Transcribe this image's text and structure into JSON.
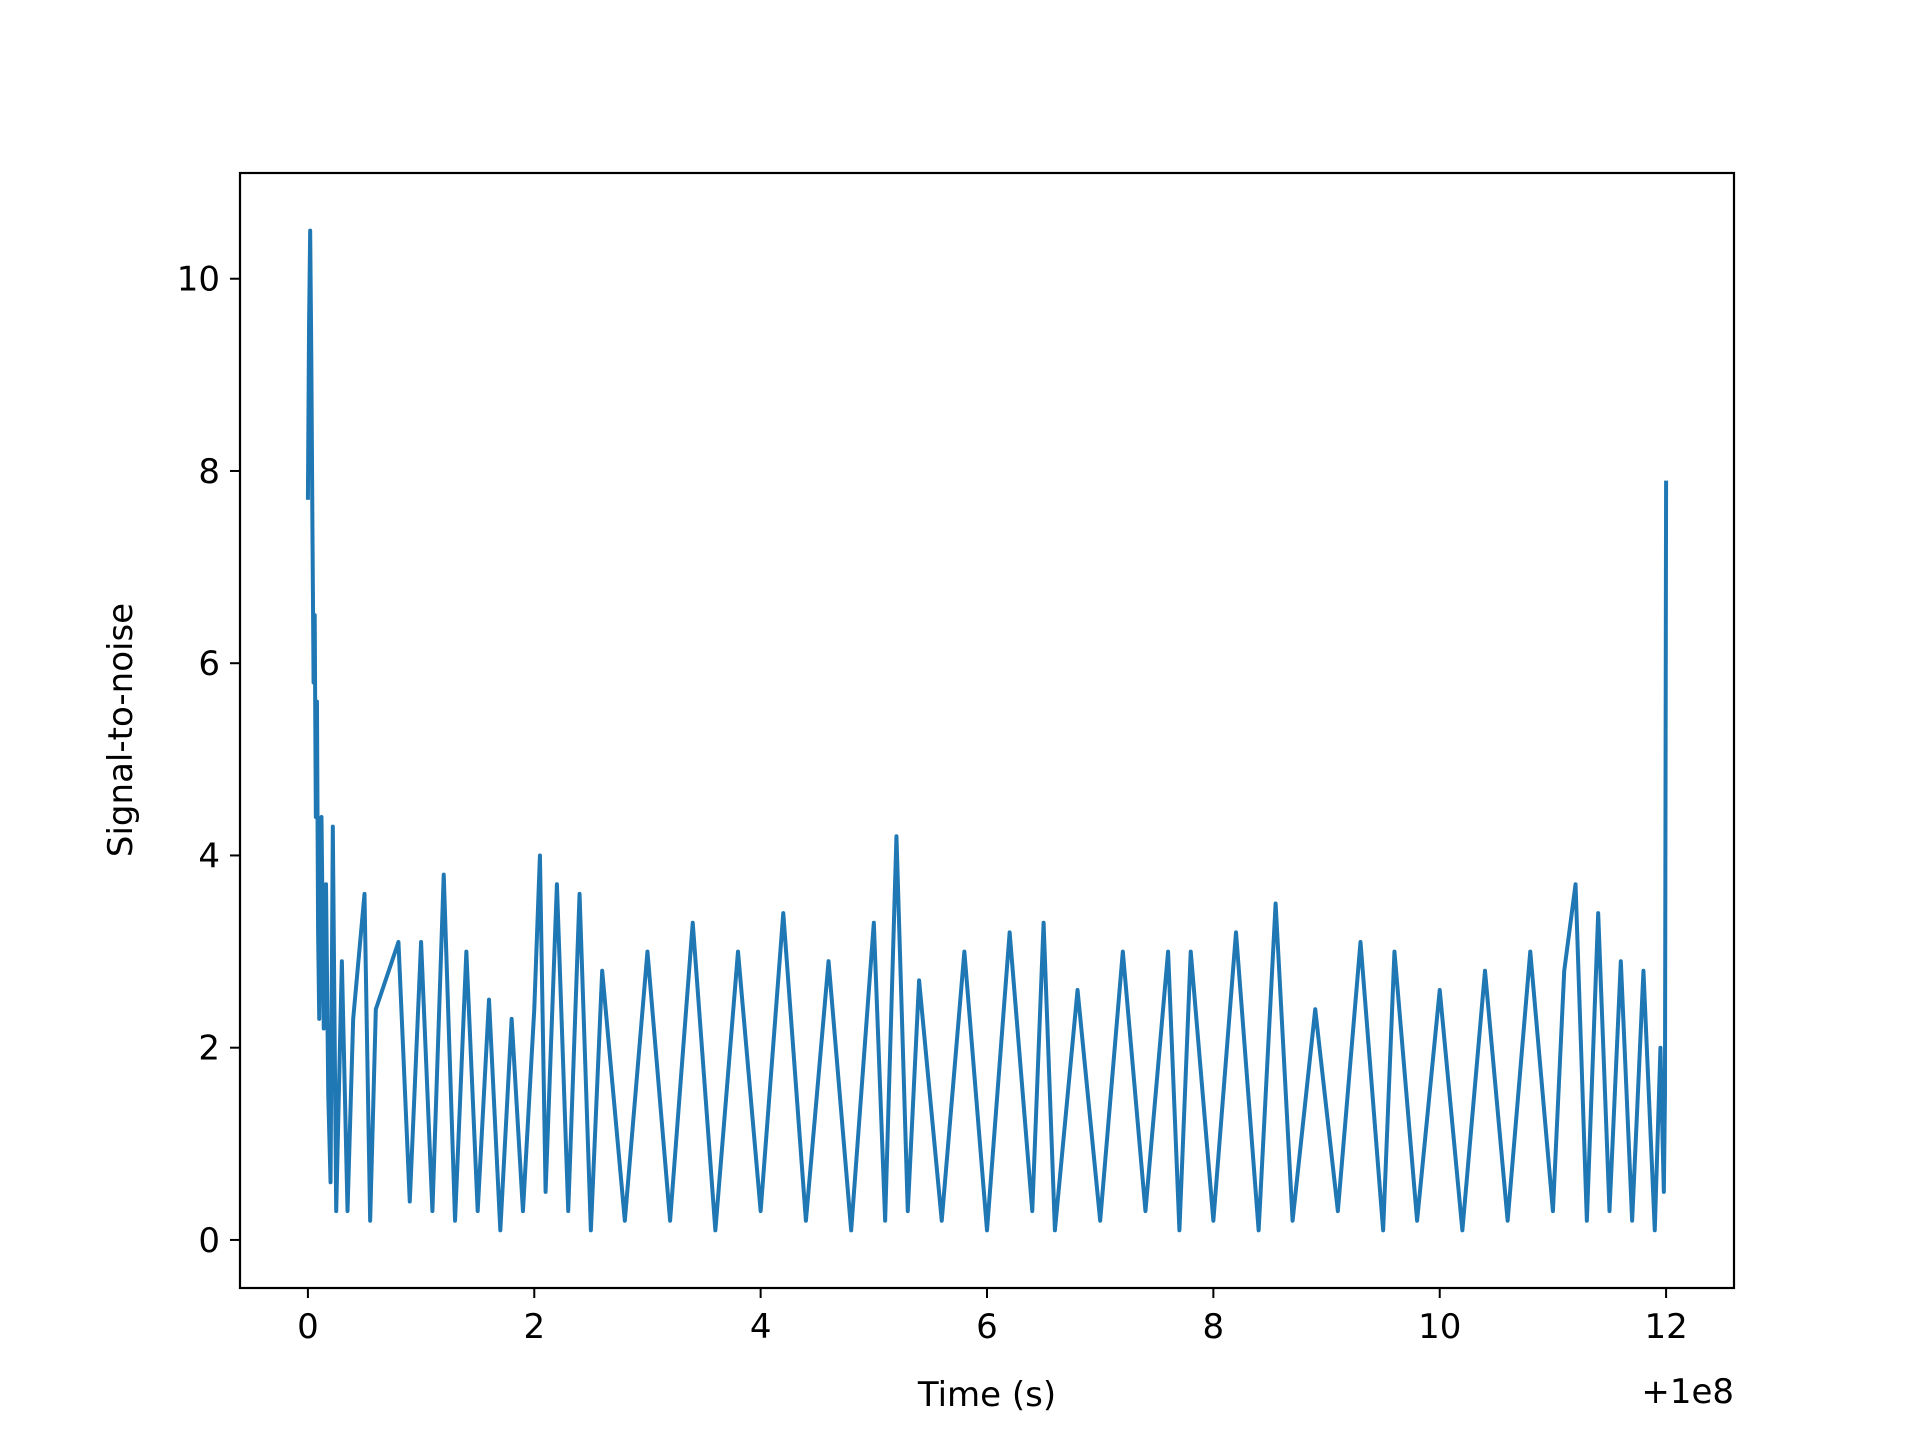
{
  "chart_data": {
    "type": "line",
    "title": "",
    "xlabel": "Time (s)",
    "ylabel": "Signal-to-noise",
    "x_offset_label": "+1e8",
    "xlim": [
      -0.6,
      12.6
    ],
    "ylim": [
      -0.5,
      11.1
    ],
    "xticks": [
      0,
      2,
      4,
      6,
      8,
      10,
      12
    ],
    "xtick_labels": [
      "0",
      "2",
      "4",
      "6",
      "8",
      "10",
      "12"
    ],
    "yticks": [
      0,
      2,
      4,
      6,
      8,
      10
    ],
    "ytick_labels": [
      "0",
      "2",
      "4",
      "6",
      "8",
      "10"
    ],
    "grid": false,
    "legend": "none",
    "series": [
      {
        "color": "#1f77b4",
        "x": [
          0.0,
          0.01,
          0.02,
          0.03,
          0.04,
          0.05,
          0.06,
          0.07,
          0.08,
          0.09,
          0.1,
          0.12,
          0.14,
          0.16,
          0.18,
          0.2,
          0.22,
          0.25,
          0.3,
          0.35,
          0.4,
          0.5,
          0.55,
          0.6,
          0.8,
          0.9,
          1.0,
          1.1,
          1.2,
          1.3,
          1.4,
          1.5,
          1.6,
          1.7,
          1.8,
          1.9,
          2.0,
          2.05,
          2.1,
          2.2,
          2.3,
          2.4,
          2.5,
          2.6,
          2.8,
          3.0,
          3.2,
          3.4,
          3.6,
          3.8,
          4.0,
          4.2,
          4.4,
          4.6,
          4.8,
          5.0,
          5.1,
          5.2,
          5.3,
          5.4,
          5.6,
          5.8,
          6.0,
          6.2,
          6.4,
          6.5,
          6.6,
          6.8,
          7.0,
          7.2,
          7.4,
          7.6,
          7.7,
          7.8,
          8.0,
          8.2,
          8.4,
          8.55,
          8.7,
          8.9,
          9.1,
          9.3,
          9.5,
          9.6,
          9.8,
          10.0,
          10.2,
          10.4,
          10.6,
          10.8,
          11.0,
          11.1,
          11.2,
          11.3,
          11.4,
          11.5,
          11.6,
          11.7,
          11.8,
          11.9,
          11.95,
          11.98,
          11.99,
          12.0
        ],
        "y": [
          7.7,
          9.5,
          10.5,
          9.2,
          7.4,
          5.8,
          6.5,
          4.4,
          5.6,
          3.2,
          2.3,
          4.4,
          2.2,
          3.7,
          1.5,
          0.6,
          4.3,
          0.3,
          2.9,
          0.3,
          2.3,
          3.6,
          0.2,
          2.4,
          3.1,
          0.4,
          3.1,
          0.3,
          3.8,
          0.2,
          3.0,
          0.3,
          2.5,
          0.1,
          2.3,
          0.3,
          2.4,
          4.0,
          0.5,
          3.7,
          0.3,
          3.6,
          0.1,
          2.8,
          0.2,
          3.0,
          0.2,
          3.3,
          0.1,
          3.0,
          0.3,
          3.4,
          0.2,
          2.9,
          0.1,
          3.3,
          0.2,
          4.2,
          0.3,
          2.7,
          0.2,
          3.0,
          0.1,
          3.2,
          0.3,
          3.3,
          0.1,
          2.6,
          0.2,
          3.0,
          0.3,
          3.0,
          0.1,
          3.0,
          0.2,
          3.2,
          0.1,
          3.5,
          0.2,
          2.4,
          0.3,
          3.1,
          0.1,
          3.0,
          0.2,
          2.6,
          0.1,
          2.8,
          0.2,
          3.0,
          0.3,
          2.8,
          3.7,
          0.2,
          3.4,
          0.3,
          2.9,
          0.2,
          2.8,
          0.1,
          2.0,
          0.5,
          1.5,
          7.9
        ]
      }
    ]
  }
}
